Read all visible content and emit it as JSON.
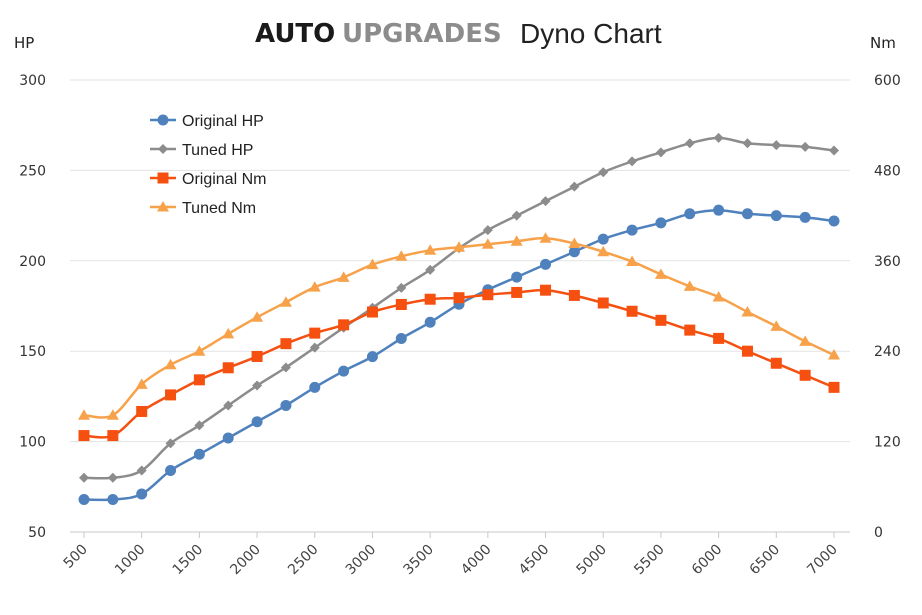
{
  "chart_data": {
    "type": "line",
    "title": {
      "brand_primary": "AUTO",
      "brand_secondary": "UPGRADES",
      "subtitle": "Dyno Chart"
    },
    "ylabel_left": "HP",
    "ylabel_right": "Nm",
    "ylim_left": [
      50,
      300
    ],
    "ylim_right": [
      0,
      600
    ],
    "yticks_left": [
      50,
      100,
      150,
      200,
      250,
      300
    ],
    "yticks_right": [
      0,
      120,
      240,
      360,
      480,
      600
    ],
    "grid": true,
    "legend_position": "top-left",
    "x": [
      500,
      750,
      1000,
      1250,
      1500,
      1750,
      2000,
      2250,
      2500,
      2750,
      3000,
      3250,
      3500,
      3750,
      4000,
      4250,
      4500,
      4750,
      5000,
      5250,
      5500,
      5750,
      6000,
      6250,
      6500,
      6750,
      7000
    ],
    "xticks": [
      500,
      1000,
      1500,
      2000,
      2500,
      3000,
      3500,
      4000,
      4500,
      5000,
      5500,
      6000,
      6500,
      7000
    ],
    "series": [
      {
        "name": "Original HP",
        "axis": "left",
        "color": "#4f81bd",
        "marker": "circle",
        "values": [
          68,
          68,
          71,
          84,
          93,
          102,
          111,
          120,
          130,
          139,
          147,
          157,
          166,
          176,
          184,
          191,
          198,
          205,
          212,
          217,
          221,
          226,
          228,
          226,
          225,
          224,
          222
        ]
      },
      {
        "name": "Tuned HP",
        "axis": "left",
        "color": "#8c8c8c",
        "marker": "diamond",
        "values": [
          80,
          80,
          84,
          99,
          109,
          120,
          131,
          141,
          152,
          163,
          174,
          185,
          195,
          207,
          217,
          225,
          233,
          241,
          249,
          255,
          260,
          265,
          268,
          265,
          264,
          263,
          261
        ]
      },
      {
        "name": "Original Nm",
        "axis": "right",
        "color": "#f5500f",
        "marker": "square",
        "values": [
          128,
          128,
          160,
          182,
          202,
          218,
          233,
          250,
          264,
          275,
          292,
          302,
          309,
          311,
          315,
          318,
          321,
          314,
          304,
          293,
          281,
          268,
          257,
          240,
          224,
          208,
          192
        ]
      },
      {
        "name": "Tuned Nm",
        "axis": "right",
        "color": "#f7a24b",
        "marker": "triangle",
        "values": [
          155,
          155,
          196,
          222,
          240,
          263,
          285,
          305,
          325,
          338,
          355,
          366,
          374,
          378,
          382,
          386,
          390,
          383,
          372,
          359,
          342,
          326,
          312,
          292,
          273,
          253,
          235
        ]
      }
    ]
  }
}
